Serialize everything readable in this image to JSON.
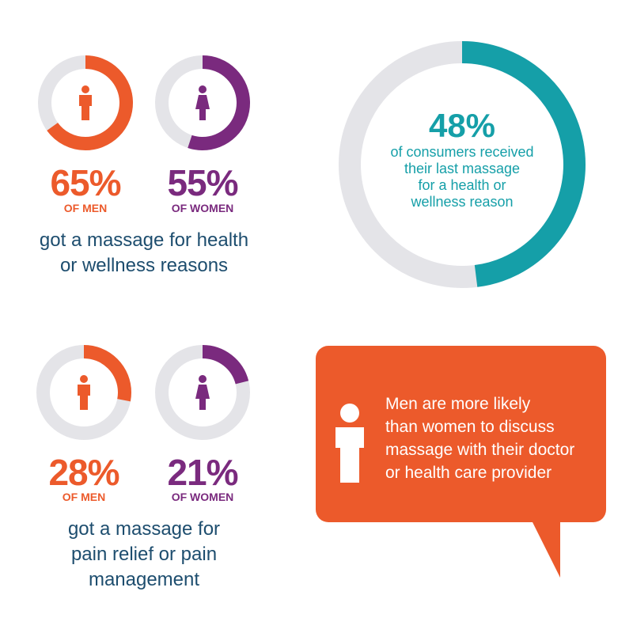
{
  "colors": {
    "men": "#ec5a2b",
    "women": "#7a2a7e",
    "teal": "#159fa8",
    "track": "#e4e4e8",
    "caption": "#1d4d6e",
    "bubble": "#ec5a2b"
  },
  "chart_data": [
    {
      "type": "donut",
      "value_percent": 65,
      "label": "65%",
      "sublabel": "OF MEN",
      "icon": "man-icon"
    },
    {
      "type": "donut",
      "value_percent": 55,
      "label": "55%",
      "sublabel": "OF WOMEN",
      "icon": "woman-icon"
    },
    {
      "type": "donut",
      "value_percent": 48,
      "label": "48%",
      "text": "of consumers received their last massage for a health or wellness reason"
    },
    {
      "type": "donut",
      "value_percent": 28,
      "label": "28%",
      "sublabel": "OF MEN",
      "icon": "man-icon"
    },
    {
      "type": "donut",
      "value_percent": 21,
      "label": "21%",
      "sublabel": "OF WOMEN",
      "icon": "woman-icon"
    }
  ],
  "texts": {
    "health_pct_men": "65%",
    "health_sub_men": "OF MEN",
    "health_pct_women": "55%",
    "health_sub_women": "OF WOMEN",
    "health_caption_line1": "got a massage for health",
    "health_caption_line2": "or wellness reasons",
    "consumers_pct": "48%",
    "consumers_line1": "of consumers received",
    "consumers_line2": "their last massage",
    "consumers_line3": "for a health or",
    "consumers_line4": "wellness reason",
    "pain_pct_men": "28%",
    "pain_sub_men": "OF MEN",
    "pain_pct_women": "21%",
    "pain_sub_women": "OF WOMEN",
    "pain_caption_line1": "got a massage for",
    "pain_caption_line2": "pain relief or pain",
    "pain_caption_line3": "management",
    "bubble_line1": "Men are more likely",
    "bubble_line2": "than women to discuss",
    "bubble_line3": "massage with their doctor",
    "bubble_line4": "or health care provider"
  },
  "icons": {
    "man": "man-icon",
    "woman": "woman-icon",
    "bubble_person": "person-icon"
  }
}
